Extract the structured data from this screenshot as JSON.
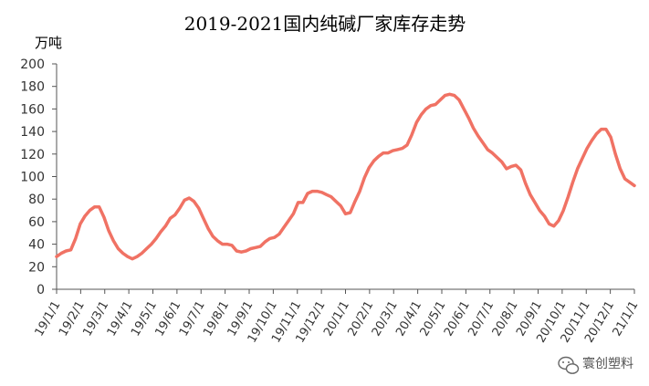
{
  "chart_data": {
    "type": "line",
    "title": "2019-2021国内纯碱厂家库存走势",
    "ylabel": "万吨",
    "xlabel": "",
    "ylim": [
      0,
      200
    ],
    "yticks": [
      0,
      20,
      40,
      60,
      80,
      100,
      120,
      140,
      160,
      180,
      200
    ],
    "x_tick_labels": [
      "19/1/1",
      "19/2/1",
      "19/3/1",
      "19/4/1",
      "19/5/1",
      "19/6/1",
      "19/7/1",
      "19/8/1",
      "19/9/1",
      "19/10/1",
      "19/11/1",
      "19/12/1",
      "20/1/1",
      "20/2/1",
      "20/3/1",
      "20/4/1",
      "20/5/1",
      "20/6/1",
      "20/7/1",
      "20/8/1",
      "20/9/1",
      "20/10/1",
      "20/11/1",
      "20/12/1",
      "21/1/1"
    ],
    "grid": false,
    "line_color": "#f07264",
    "series": [
      {
        "values": [
          29,
          32,
          34,
          35,
          45,
          58,
          65,
          70,
          73,
          73,
          64,
          52,
          43,
          36,
          32,
          29,
          27,
          29,
          32,
          36,
          40,
          45,
          51,
          56,
          63,
          66,
          72,
          79,
          81,
          78,
          72,
          63,
          54,
          47,
          43,
          40,
          40,
          39,
          34,
          33,
          34,
          36,
          37,
          38,
          42,
          45,
          46,
          49,
          55,
          61,
          67,
          77,
          77,
          85,
          87,
          87,
          86,
          84,
          82,
          78,
          74,
          67,
          68,
          78,
          87,
          99,
          108,
          114,
          118,
          121,
          121,
          123,
          124,
          125,
          128,
          137,
          148,
          155,
          160,
          163,
          164,
          168,
          172,
          173,
          172,
          168,
          160,
          152,
          143,
          136,
          130,
          124,
          121,
          117,
          113,
          107,
          109,
          110,
          106,
          94,
          84,
          77,
          70,
          65,
          58,
          56,
          61,
          70,
          82,
          95,
          107,
          116,
          125,
          132,
          138,
          142,
          142,
          135,
          120,
          107,
          98,
          95,
          92
        ]
      }
    ]
  },
  "watermark": {
    "text": "寰创塑料",
    "icon": "wechat-icon"
  }
}
